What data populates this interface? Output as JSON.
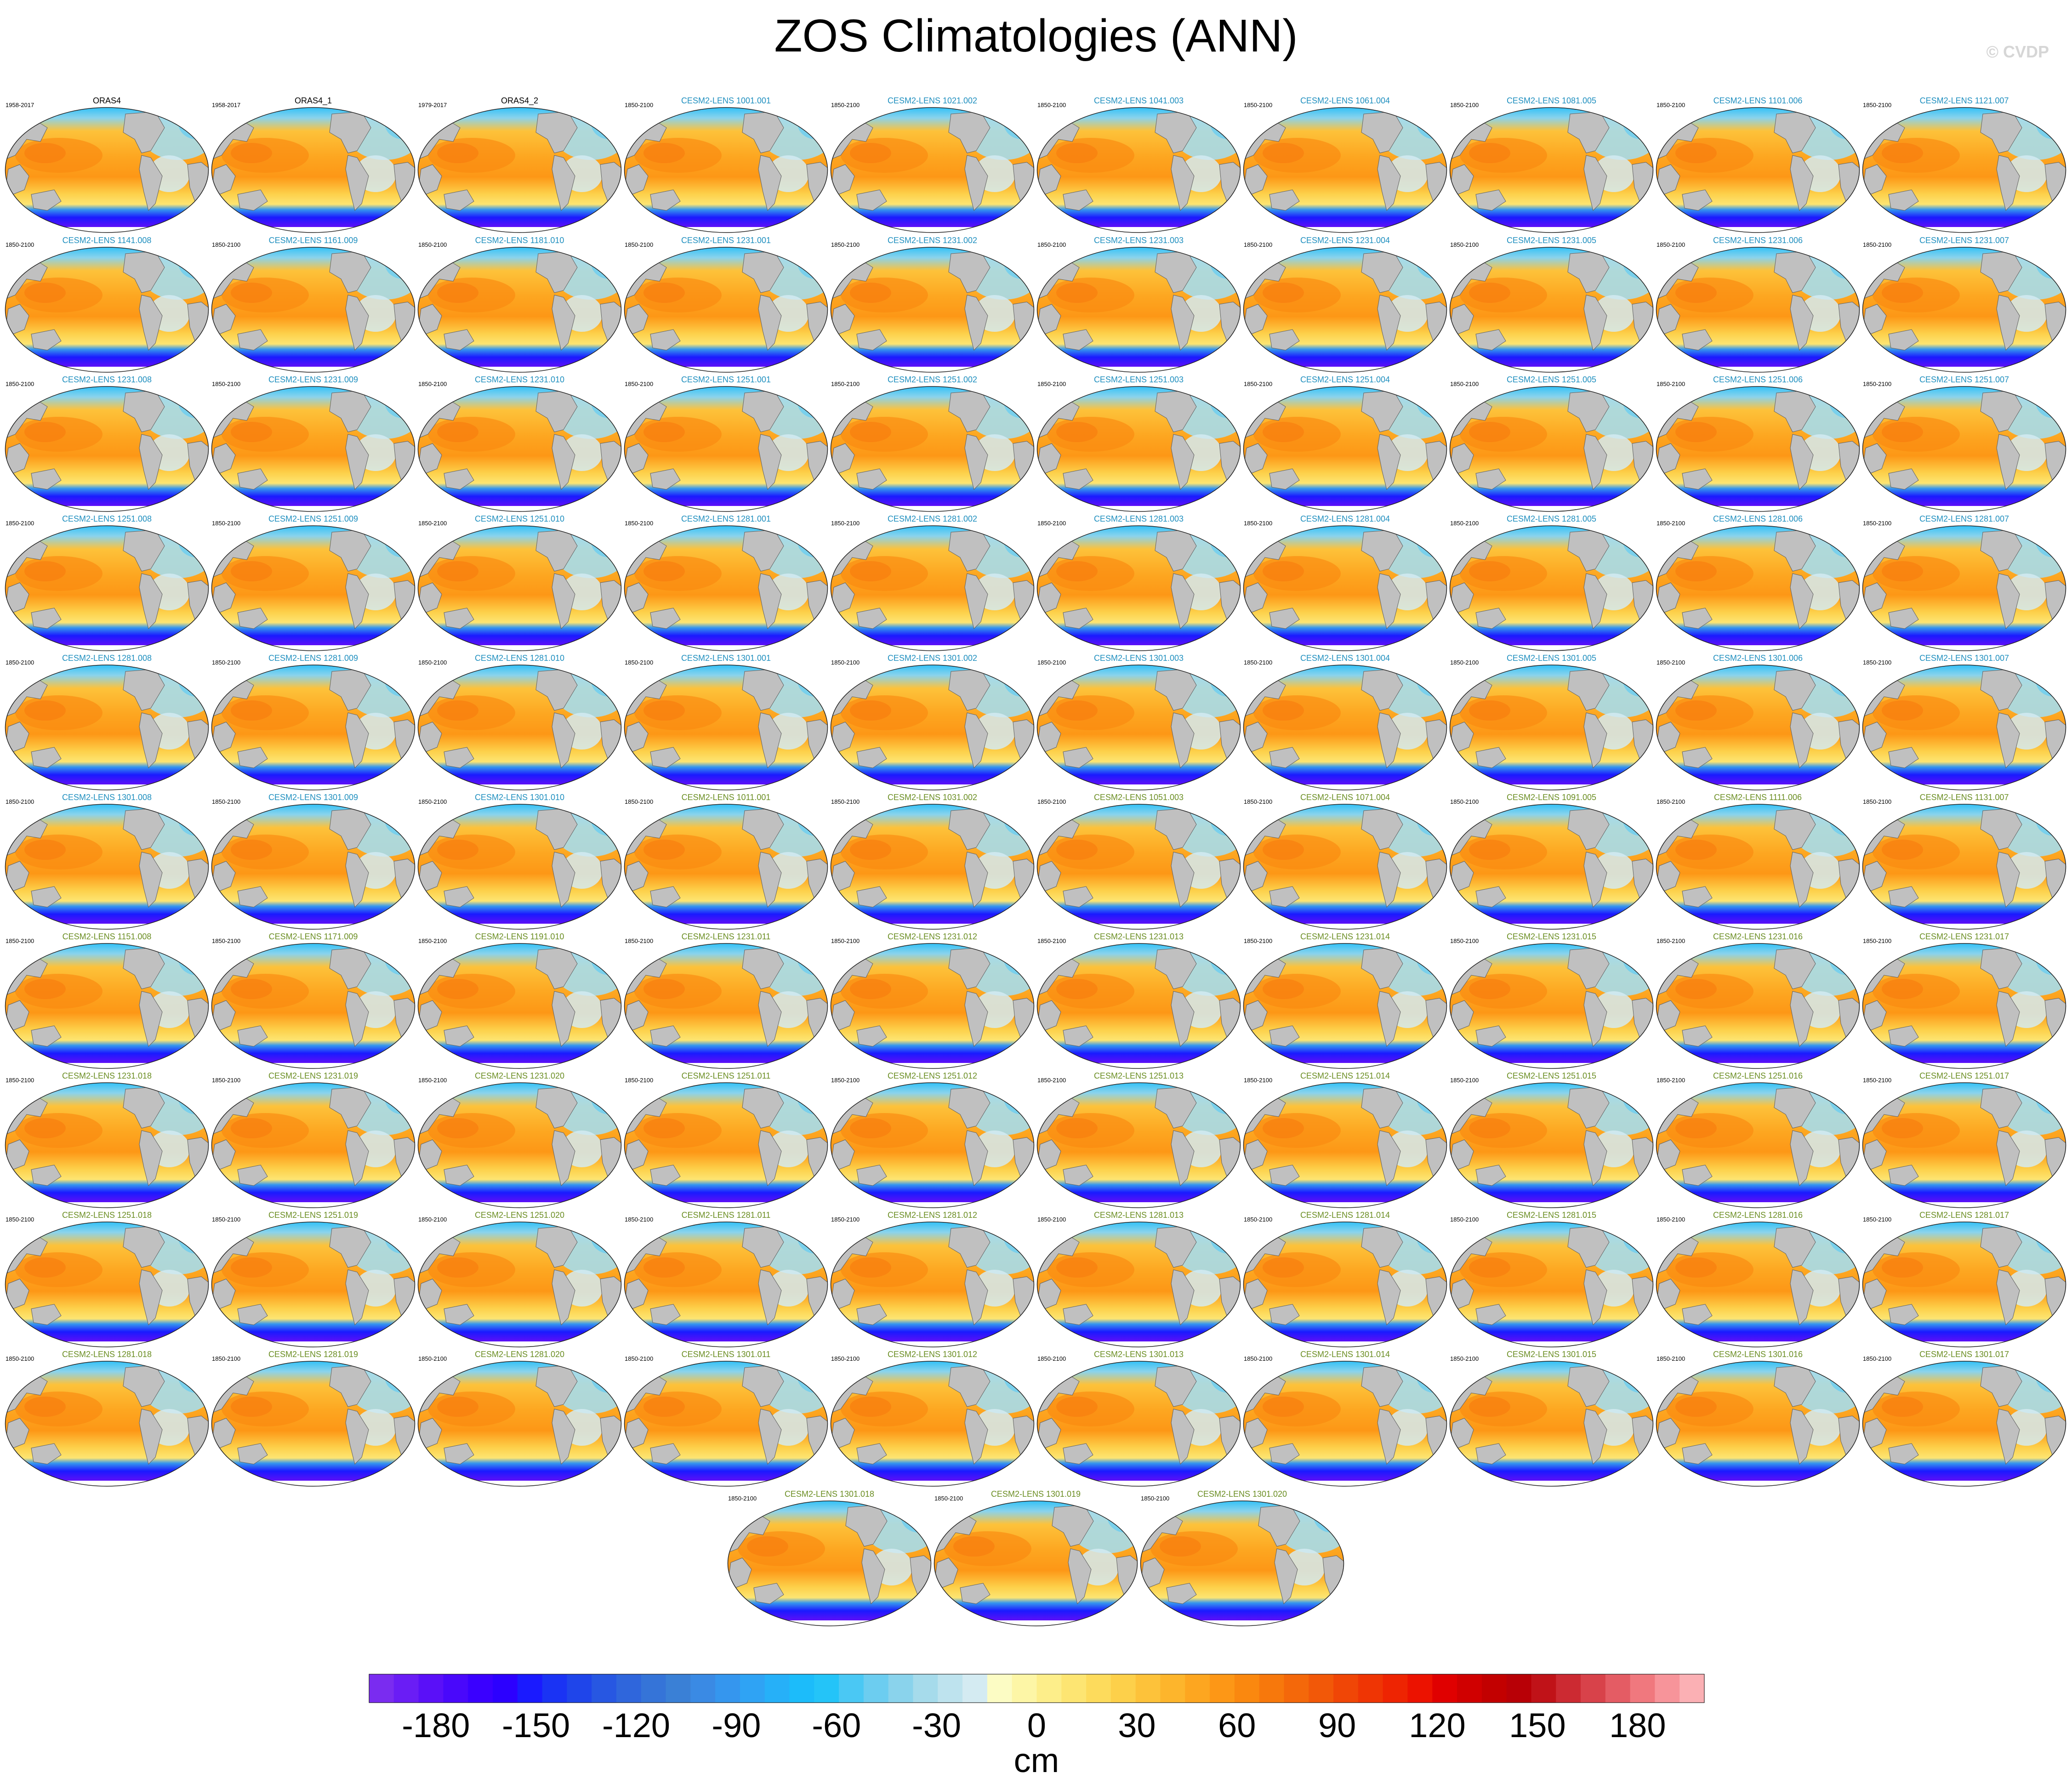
{
  "header": {
    "title": "ZOS Climatologies (ANN)",
    "watermark": "© CVDP"
  },
  "chart_data": {
    "type": "heatmap",
    "description_type": "panel grid of global maps",
    "panel_background": "#c0c0c0",
    "panels": [
      {
        "name": "ORAS4",
        "period": "1958-2017",
        "label_color": "#000000"
      },
      {
        "name": "ORAS4_1",
        "period": "1958-2017",
        "label_color": "#000000"
      },
      {
        "name": "ORAS4_2",
        "period": "1979-2017",
        "label_color": "#000000"
      },
      {
        "name": "CESM2-LENS 1001.001",
        "period": "1850-2100",
        "label_color": "#1f8fbf"
      },
      {
        "name": "CESM2-LENS 1021.002",
        "period": "1850-2100",
        "label_color": "#1f8fbf"
      },
      {
        "name": "CESM2-LENS 1041.003",
        "period": "1850-2100",
        "label_color": "#1f8fbf"
      },
      {
        "name": "CESM2-LENS 1061.004",
        "period": "1850-2100",
        "label_color": "#1f8fbf"
      },
      {
        "name": "CESM2-LENS 1081.005",
        "period": "1850-2100",
        "label_color": "#1f8fbf"
      },
      {
        "name": "CESM2-LENS 1101.006",
        "period": "1850-2100",
        "label_color": "#1f8fbf"
      },
      {
        "name": "CESM2-LENS 1121.007",
        "period": "1850-2100",
        "label_color": "#1f8fbf"
      },
      {
        "name": "CESM2-LENS 1141.008",
        "period": "1850-2100",
        "label_color": "#1f8fbf"
      },
      {
        "name": "CESM2-LENS 1161.009",
        "period": "1850-2100",
        "label_color": "#1f8fbf"
      },
      {
        "name": "CESM2-LENS 1181.010",
        "period": "1850-2100",
        "label_color": "#1f8fbf"
      },
      {
        "name": "CESM2-LENS 1231.001",
        "period": "1850-2100",
        "label_color": "#1f8fbf"
      },
      {
        "name": "CESM2-LENS 1231.002",
        "period": "1850-2100",
        "label_color": "#1f8fbf"
      },
      {
        "name": "CESM2-LENS 1231.003",
        "period": "1850-2100",
        "label_color": "#1f8fbf"
      },
      {
        "name": "CESM2-LENS 1231.004",
        "period": "1850-2100",
        "label_color": "#1f8fbf"
      },
      {
        "name": "CESM2-LENS 1231.005",
        "period": "1850-2100",
        "label_color": "#1f8fbf"
      },
      {
        "name": "CESM2-LENS 1231.006",
        "period": "1850-2100",
        "label_color": "#1f8fbf"
      },
      {
        "name": "CESM2-LENS 1231.007",
        "period": "1850-2100",
        "label_color": "#1f8fbf"
      },
      {
        "name": "CESM2-LENS 1231.008",
        "period": "1850-2100",
        "label_color": "#1f8fbf"
      },
      {
        "name": "CESM2-LENS 1231.009",
        "period": "1850-2100",
        "label_color": "#1f8fbf"
      },
      {
        "name": "CESM2-LENS 1231.010",
        "period": "1850-2100",
        "label_color": "#1f8fbf"
      },
      {
        "name": "CESM2-LENS 1251.001",
        "period": "1850-2100",
        "label_color": "#1f8fbf"
      },
      {
        "name": "CESM2-LENS 1251.002",
        "period": "1850-2100",
        "label_color": "#1f8fbf"
      },
      {
        "name": "CESM2-LENS 1251.003",
        "period": "1850-2100",
        "label_color": "#1f8fbf"
      },
      {
        "name": "CESM2-LENS 1251.004",
        "period": "1850-2100",
        "label_color": "#1f8fbf"
      },
      {
        "name": "CESM2-LENS 1251.005",
        "period": "1850-2100",
        "label_color": "#1f8fbf"
      },
      {
        "name": "CESM2-LENS 1251.006",
        "period": "1850-2100",
        "label_color": "#1f8fbf"
      },
      {
        "name": "CESM2-LENS 1251.007",
        "period": "1850-2100",
        "label_color": "#1f8fbf"
      },
      {
        "name": "CESM2-LENS 1251.008",
        "period": "1850-2100",
        "label_color": "#1f8fbf"
      },
      {
        "name": "CESM2-LENS 1251.009",
        "period": "1850-2100",
        "label_color": "#1f8fbf"
      },
      {
        "name": "CESM2-LENS 1251.010",
        "period": "1850-2100",
        "label_color": "#1f8fbf"
      },
      {
        "name": "CESM2-LENS 1281.001",
        "period": "1850-2100",
        "label_color": "#1f8fbf"
      },
      {
        "name": "CESM2-LENS 1281.002",
        "period": "1850-2100",
        "label_color": "#1f8fbf"
      },
      {
        "name": "CESM2-LENS 1281.003",
        "period": "1850-2100",
        "label_color": "#1f8fbf"
      },
      {
        "name": "CESM2-LENS 1281.004",
        "period": "1850-2100",
        "label_color": "#1f8fbf"
      },
      {
        "name": "CESM2-LENS 1281.005",
        "period": "1850-2100",
        "label_color": "#1f8fbf"
      },
      {
        "name": "CESM2-LENS 1281.006",
        "period": "1850-2100",
        "label_color": "#1f8fbf"
      },
      {
        "name": "CESM2-LENS 1281.007",
        "period": "1850-2100",
        "label_color": "#1f8fbf"
      },
      {
        "name": "CESM2-LENS 1281.008",
        "period": "1850-2100",
        "label_color": "#1f8fbf"
      },
      {
        "name": "CESM2-LENS 1281.009",
        "period": "1850-2100",
        "label_color": "#1f8fbf"
      },
      {
        "name": "CESM2-LENS 1281.010",
        "period": "1850-2100",
        "label_color": "#1f8fbf"
      },
      {
        "name": "CESM2-LENS 1301.001",
        "period": "1850-2100",
        "label_color": "#1f8fbf"
      },
      {
        "name": "CESM2-LENS 1301.002",
        "period": "1850-2100",
        "label_color": "#1f8fbf"
      },
      {
        "name": "CESM2-LENS 1301.003",
        "period": "1850-2100",
        "label_color": "#1f8fbf"
      },
      {
        "name": "CESM2-LENS 1301.004",
        "period": "1850-2100",
        "label_color": "#1f8fbf"
      },
      {
        "name": "CESM2-LENS 1301.005",
        "period": "1850-2100",
        "label_color": "#1f8fbf"
      },
      {
        "name": "CESM2-LENS 1301.006",
        "period": "1850-2100",
        "label_color": "#1f8fbf"
      },
      {
        "name": "CESM2-LENS 1301.007",
        "period": "1850-2100",
        "label_color": "#1f8fbf"
      },
      {
        "name": "CESM2-LENS 1301.008",
        "period": "1850-2100",
        "label_color": "#1f8fbf"
      },
      {
        "name": "CESM2-LENS 1301.009",
        "period": "1850-2100",
        "label_color": "#1f8fbf"
      },
      {
        "name": "CESM2-LENS 1301.010",
        "period": "1850-2100",
        "label_color": "#1f8fbf"
      },
      {
        "name": "CESM2-LENS 1011.001",
        "period": "1850-2100",
        "label_color": "#6b8e23"
      },
      {
        "name": "CESM2-LENS 1031.002",
        "period": "1850-2100",
        "label_color": "#6b8e23"
      },
      {
        "name": "CESM2-LENS 1051.003",
        "period": "1850-2100",
        "label_color": "#6b8e23"
      },
      {
        "name": "CESM2-LENS 1071.004",
        "period": "1850-2100",
        "label_color": "#6b8e23"
      },
      {
        "name": "CESM2-LENS 1091.005",
        "period": "1850-2100",
        "label_color": "#6b8e23"
      },
      {
        "name": "CESM2-LENS 1111.006",
        "period": "1850-2100",
        "label_color": "#6b8e23"
      },
      {
        "name": "CESM2-LENS 1131.007",
        "period": "1850-2100",
        "label_color": "#6b8e23"
      },
      {
        "name": "CESM2-LENS 1151.008",
        "period": "1850-2100",
        "label_color": "#6b8e23"
      },
      {
        "name": "CESM2-LENS 1171.009",
        "period": "1850-2100",
        "label_color": "#6b8e23"
      },
      {
        "name": "CESM2-LENS 1191.010",
        "period": "1850-2100",
        "label_color": "#6b8e23"
      },
      {
        "name": "CESM2-LENS 1231.011",
        "period": "1850-2100",
        "label_color": "#6b8e23"
      },
      {
        "name": "CESM2-LENS 1231.012",
        "period": "1850-2100",
        "label_color": "#6b8e23"
      },
      {
        "name": "CESM2-LENS 1231.013",
        "period": "1850-2100",
        "label_color": "#6b8e23"
      },
      {
        "name": "CESM2-LENS 1231.014",
        "period": "1850-2100",
        "label_color": "#6b8e23"
      },
      {
        "name": "CESM2-LENS 1231.015",
        "period": "1850-2100",
        "label_color": "#6b8e23"
      },
      {
        "name": "CESM2-LENS 1231.016",
        "period": "1850-2100",
        "label_color": "#6b8e23"
      },
      {
        "name": "CESM2-LENS 1231.017",
        "period": "1850-2100",
        "label_color": "#6b8e23"
      },
      {
        "name": "CESM2-LENS 1231.018",
        "period": "1850-2100",
        "label_color": "#6b8e23"
      },
      {
        "name": "CESM2-LENS 1231.019",
        "period": "1850-2100",
        "label_color": "#6b8e23"
      },
      {
        "name": "CESM2-LENS 1231.020",
        "period": "1850-2100",
        "label_color": "#6b8e23"
      },
      {
        "name": "CESM2-LENS 1251.011",
        "period": "1850-2100",
        "label_color": "#6b8e23"
      },
      {
        "name": "CESM2-LENS 1251.012",
        "period": "1850-2100",
        "label_color": "#6b8e23"
      },
      {
        "name": "CESM2-LENS 1251.013",
        "period": "1850-2100",
        "label_color": "#6b8e23"
      },
      {
        "name": "CESM2-LENS 1251.014",
        "period": "1850-2100",
        "label_color": "#6b8e23"
      },
      {
        "name": "CESM2-LENS 1251.015",
        "period": "1850-2100",
        "label_color": "#6b8e23"
      },
      {
        "name": "CESM2-LENS 1251.016",
        "period": "1850-2100",
        "label_color": "#6b8e23"
      },
      {
        "name": "CESM2-LENS 1251.017",
        "period": "1850-2100",
        "label_color": "#6b8e23"
      },
      {
        "name": "CESM2-LENS 1251.018",
        "period": "1850-2100",
        "label_color": "#6b8e23"
      },
      {
        "name": "CESM2-LENS 1251.019",
        "period": "1850-2100",
        "label_color": "#6b8e23"
      },
      {
        "name": "CESM2-LENS 1251.020",
        "period": "1850-2100",
        "label_color": "#6b8e23"
      },
      {
        "name": "CESM2-LENS 1281.011",
        "period": "1850-2100",
        "label_color": "#6b8e23"
      },
      {
        "name": "CESM2-LENS 1281.012",
        "period": "1850-2100",
        "label_color": "#6b8e23"
      },
      {
        "name": "CESM2-LENS 1281.013",
        "period": "1850-2100",
        "label_color": "#6b8e23"
      },
      {
        "name": "CESM2-LENS 1281.014",
        "period": "1850-2100",
        "label_color": "#6b8e23"
      },
      {
        "name": "CESM2-LENS 1281.015",
        "period": "1850-2100",
        "label_color": "#6b8e23"
      },
      {
        "name": "CESM2-LENS 1281.016",
        "period": "1850-2100",
        "label_color": "#6b8e23"
      },
      {
        "name": "CESM2-LENS 1281.017",
        "period": "1850-2100",
        "label_color": "#6b8e23"
      },
      {
        "name": "CESM2-LENS 1281.018",
        "period": "1850-2100",
        "label_color": "#6b8e23"
      },
      {
        "name": "CESM2-LENS 1281.019",
        "period": "1850-2100",
        "label_color": "#6b8e23"
      },
      {
        "name": "CESM2-LENS 1281.020",
        "period": "1850-2100",
        "label_color": "#6b8e23"
      },
      {
        "name": "CESM2-LENS 1301.011",
        "period": "1850-2100",
        "label_color": "#6b8e23"
      },
      {
        "name": "CESM2-LENS 1301.012",
        "period": "1850-2100",
        "label_color": "#6b8e23"
      },
      {
        "name": "CESM2-LENS 1301.013",
        "period": "1850-2100",
        "label_color": "#6b8e23"
      },
      {
        "name": "CESM2-LENS 1301.014",
        "period": "1850-2100",
        "label_color": "#6b8e23"
      },
      {
        "name": "CESM2-LENS 1301.015",
        "period": "1850-2100",
        "label_color": "#6b8e23"
      },
      {
        "name": "CESM2-LENS 1301.016",
        "period": "1850-2100",
        "label_color": "#6b8e23"
      },
      {
        "name": "CESM2-LENS 1301.017",
        "period": "1850-2100",
        "label_color": "#6b8e23"
      },
      {
        "name": "CESM2-LENS 1301.018",
        "period": "1850-2100",
        "label_color": "#6b8e23"
      },
      {
        "name": "CESM2-LENS 1301.019",
        "period": "1850-2100",
        "label_color": "#6b8e23"
      },
      {
        "name": "CESM2-LENS 1301.020",
        "period": "1850-2100",
        "label_color": "#6b8e23"
      }
    ],
    "colorbar": {
      "label": "cm",
      "range": [
        -200,
        200
      ],
      "interval": 6,
      "tick_labels": [
        "-180",
        "-150",
        "-120",
        "-90",
        "-60",
        "-30",
        "0",
        "30",
        "60",
        "90",
        "120",
        "150",
        "180"
      ],
      "tick_values": [
        -180,
        -150,
        -120,
        -90,
        -60,
        -30,
        0,
        30,
        60,
        90,
        120,
        150,
        180
      ],
      "colors": [
        "#7a2cf0",
        "#6a1df5",
        "#5a10f8",
        "#4908fb",
        "#3a00ff",
        "#2c00ff",
        "#1a1aff",
        "#1a33f4",
        "#1f45ea",
        "#2757e2",
        "#2f66dc",
        "#3574d8",
        "#3a80d6",
        "#3a8ae4",
        "#3596ee",
        "#2fa3f4",
        "#26b0f8",
        "#1cbcfa",
        "#24c4f8",
        "#4ac8f4",
        "#6ccdf0",
        "#8ad3ec",
        "#a6dbeb",
        "#bee3ee",
        "#d4ebf2",
        "#fcfcc4",
        "#fdf6a6",
        "#fdee8a",
        "#fde572",
        "#fddb5c",
        "#fdd04a",
        "#fdc23a",
        "#fdb52c",
        "#fda620",
        "#fd9716",
        "#fa880f",
        "#f7780c",
        "#f4680a",
        "#f25808",
        "#f04606",
        "#ef3504",
        "#ee2402",
        "#ec1200",
        "#e00000",
        "#d00000",
        "#c20000",
        "#b80006",
        "#c01218",
        "#cc2a32",
        "#d8424a",
        "#e45c64",
        "#f0787e",
        "#f7949a",
        "#fbb0b4"
      ]
    }
  }
}
